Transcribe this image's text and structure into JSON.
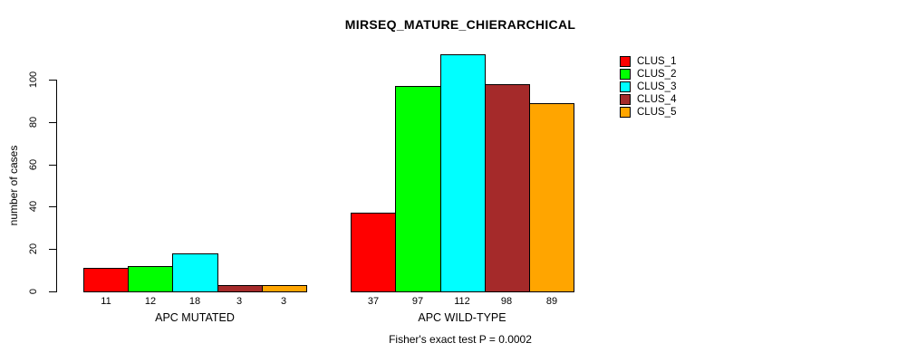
{
  "chart_data": {
    "type": "bar",
    "title": "MIRSEQ_MATURE_CHIERARCHICAL",
    "ylabel": "number of cases",
    "xlabel": "",
    "annotation": "Fisher's exact test P = 0.0002",
    "categories": [
      "APC MUTATED",
      "APC WILD-TYPE"
    ],
    "series": [
      {
        "name": "CLUS_1",
        "color": "#ff0000",
        "values": [
          11,
          37
        ]
      },
      {
        "name": "CLUS_2",
        "color": "#00ff00",
        "values": [
          12,
          97
        ]
      },
      {
        "name": "CLUS_3",
        "color": "#00ffff",
        "values": [
          18,
          112
        ]
      },
      {
        "name": "CLUS_4",
        "color": "#a52a2a",
        "values": [
          3,
          98
        ]
      },
      {
        "name": "CLUS_5",
        "color": "#ffa500",
        "values": [
          3,
          89
        ]
      }
    ],
    "yticks": [
      0,
      20,
      40,
      60,
      80,
      100
    ],
    "ylim": [
      0,
      112
    ],
    "grid": false,
    "legend_position": "top-right",
    "bar_value_labels_shown": true,
    "colors": {
      "background": "#ffffff",
      "axis": "#000000",
      "text": "#000000"
    }
  }
}
